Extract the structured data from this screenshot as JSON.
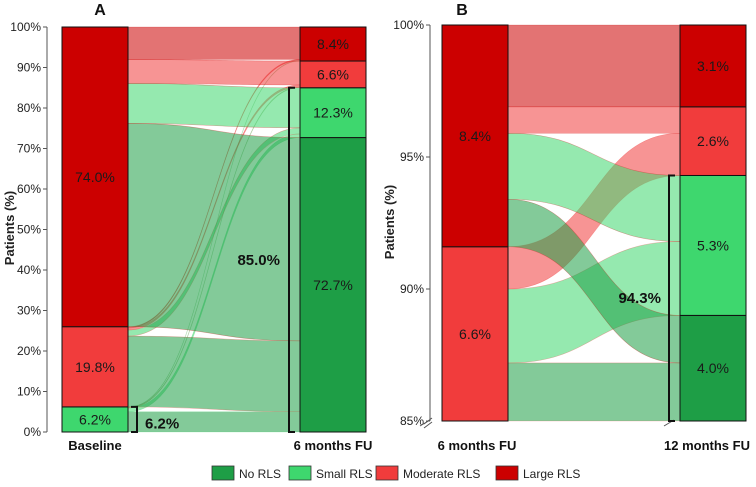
{
  "legend": [
    {
      "label": "No RLS",
      "color": "#1e9e46"
    },
    {
      "label": "Small RLS",
      "color": "#3ed76e"
    },
    {
      "label": "Moderate RLS",
      "color": "#f13c3c"
    },
    {
      "label": "Large RLS",
      "color": "#cc0000"
    }
  ],
  "chart_data": [
    {
      "type": "sankey",
      "panel": "A",
      "ylabel": "Patients (%)",
      "ylim": [
        0,
        100
      ],
      "yticks": [
        "0%",
        "10%",
        "20%",
        "30%",
        "40%",
        "50%",
        "60%",
        "70%",
        "80%",
        "90%",
        "100%"
      ],
      "categories": [
        "Baseline",
        "6 months FU"
      ],
      "stages": [
        {
          "name": "Baseline",
          "segments": [
            {
              "category": "Small RLS",
              "value": 6.2,
              "label": "6.2%"
            },
            {
              "category": "Moderate RLS",
              "value": 19.8,
              "label": "19.8%"
            },
            {
              "category": "Large RLS",
              "value": 74.0,
              "label": "74.0%"
            }
          ]
        },
        {
          "name": "6 months FU",
          "segments": [
            {
              "category": "No RLS",
              "value": 72.7,
              "label": "72.7%"
            },
            {
              "category": "Small RLS",
              "value": 12.3,
              "label": "12.3%"
            },
            {
              "category": "Moderate RLS",
              "value": 6.6,
              "label": "6.6%"
            },
            {
              "category": "Large RLS",
              "value": 8.4,
              "label": "8.4%"
            }
          ]
        }
      ],
      "flows": [
        {
          "from": "Small RLS",
          "to": "No RLS",
          "value": 5.0
        },
        {
          "from": "Small RLS",
          "to": "Small RLS",
          "value": 0.9
        },
        {
          "from": "Small RLS",
          "to": "Moderate RLS",
          "value": 0.2
        },
        {
          "from": "Small RLS",
          "to": "Large RLS",
          "value": 0.1
        },
        {
          "from": "Moderate RLS",
          "to": "No RLS",
          "value": 17.5
        },
        {
          "from": "Moderate RLS",
          "to": "Small RLS",
          "value": 1.5
        },
        {
          "from": "Moderate RLS",
          "to": "Moderate RLS",
          "value": 0.5
        },
        {
          "from": "Moderate RLS",
          "to": "Large RLS",
          "value": 0.3
        },
        {
          "from": "Large RLS",
          "to": "No RLS",
          "value": 50.2
        },
        {
          "from": "Large RLS",
          "to": "Small RLS",
          "value": 9.9
        },
        {
          "from": "Large RLS",
          "to": "Moderate RLS",
          "value": 5.9
        },
        {
          "from": "Large RLS",
          "to": "Large RLS",
          "value": 8.0
        }
      ],
      "brackets": [
        {
          "stage": "Baseline",
          "from": 0,
          "to": 6.2,
          "label": "6.2%"
        },
        {
          "stage": "6 months FU",
          "from": 0,
          "to": 85.0,
          "label": "85.0%"
        }
      ]
    },
    {
      "type": "sankey",
      "panel": "B",
      "ylabel": "Patients (%)",
      "ylim": [
        85,
        100
      ],
      "yticks": [
        "85%",
        "90%",
        "95%",
        "100%"
      ],
      "axis_break": true,
      "categories": [
        "6 months FU",
        "12 months FU"
      ],
      "stages": [
        {
          "name": "6 months FU",
          "segments": [
            {
              "category": "Moderate RLS",
              "value": 6.6,
              "label": "6.6%"
            },
            {
              "category": "Large RLS",
              "value": 8.4,
              "label": "8.4%"
            }
          ]
        },
        {
          "name": "12 months FU",
          "segments": [
            {
              "category": "No RLS",
              "value": 4.0,
              "label": "4.0%"
            },
            {
              "category": "Small RLS",
              "value": 5.3,
              "label": "5.3%"
            },
            {
              "category": "Moderate RLS",
              "value": 2.6,
              "label": "2.6%"
            },
            {
              "category": "Large RLS",
              "value": 3.1,
              "label": "3.1%"
            }
          ]
        }
      ],
      "flows": [
        {
          "from": "Moderate RLS",
          "to": "No RLS",
          "value": 2.2
        },
        {
          "from": "Moderate RLS",
          "to": "Small RLS",
          "value": 2.8
        },
        {
          "from": "Moderate RLS",
          "to": "Moderate RLS",
          "value": 1.6
        },
        {
          "from": "Large RLS",
          "to": "No RLS",
          "value": 1.8
        },
        {
          "from": "Large RLS",
          "to": "Small RLS",
          "value": 2.5
        },
        {
          "from": "Large RLS",
          "to": "Moderate RLS",
          "value": 1.0
        },
        {
          "from": "Large RLS",
          "to": "Large RLS",
          "value": 3.1
        }
      ],
      "brackets": [
        {
          "stage": "12 months FU",
          "from": 85,
          "to": 94.3,
          "label": "94.3%"
        }
      ]
    }
  ]
}
